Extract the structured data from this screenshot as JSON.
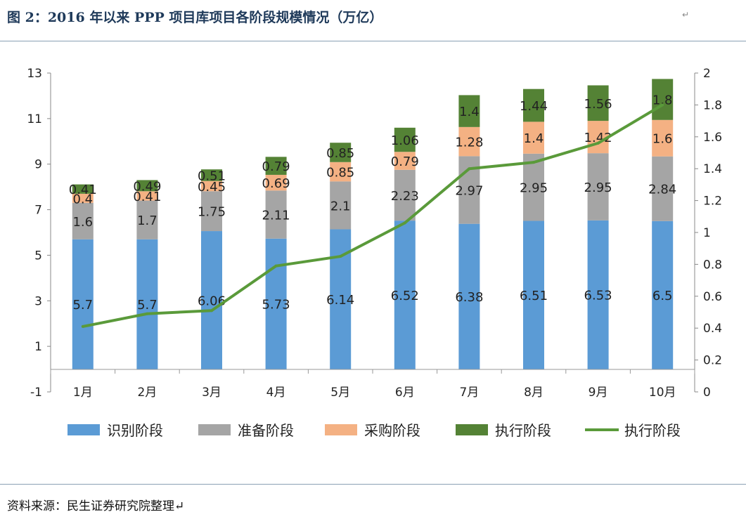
{
  "header": {
    "title": "图 2：2016 年以来 PPP 项目库项目各阶段规模情况（万亿）",
    "title_mark": "↵"
  },
  "footer": {
    "source": "资料来源：民生证券研究院整理↵"
  },
  "chart_data": {
    "type": "bar",
    "stacked": true,
    "title": "",
    "xlabel": "",
    "ylabel": "",
    "categories": [
      "1月",
      "2月",
      "3月",
      "4月",
      "5月",
      "6月",
      "7月",
      "8月",
      "9月",
      "10月"
    ],
    "series": [
      {
        "name": "识别阶段",
        "type": "bar",
        "axis": "left",
        "color": "#5b9bd5",
        "values": [
          5.7,
          5.7,
          6.06,
          5.73,
          6.14,
          6.52,
          6.38,
          6.51,
          6.53,
          6.5
        ]
      },
      {
        "name": "准备阶段",
        "type": "bar",
        "axis": "left",
        "color": "#a5a5a5",
        "values": [
          1.6,
          1.7,
          1.75,
          2.11,
          2.1,
          2.23,
          2.97,
          2.95,
          2.95,
          2.84
        ]
      },
      {
        "name": "采购阶段",
        "type": "bar",
        "axis": "left",
        "color": "#f4b183",
        "values": [
          0.4,
          0.41,
          0.45,
          0.69,
          0.85,
          0.79,
          1.28,
          1.4,
          1.42,
          1.6
        ]
      },
      {
        "name": "执行阶段",
        "type": "bar",
        "axis": "left",
        "color": "#548235",
        "values": [
          0.41,
          0.49,
          0.51,
          0.79,
          0.85,
          1.06,
          1.4,
          1.44,
          1.56,
          1.8
        ]
      },
      {
        "name": "执行阶段",
        "type": "line",
        "axis": "right",
        "color": "#5a9a3a",
        "values": [
          0.41,
          0.49,
          0.51,
          0.79,
          0.85,
          1.06,
          1.4,
          1.44,
          1.56,
          1.8
        ]
      }
    ],
    "y_left": {
      "min": -1,
      "max": 13,
      "ticks": [
        "-1",
        "1",
        "3",
        "5",
        "7",
        "9",
        "11",
        "13"
      ]
    },
    "y_right": {
      "min": 0,
      "max": 2,
      "ticks": [
        "0",
        "0.2",
        "0.4",
        "0.6",
        "0.8",
        "1",
        "1.2",
        "1.4",
        "1.6",
        "1.8",
        "2"
      ]
    },
    "grid": false,
    "legend_position": "bottom"
  }
}
